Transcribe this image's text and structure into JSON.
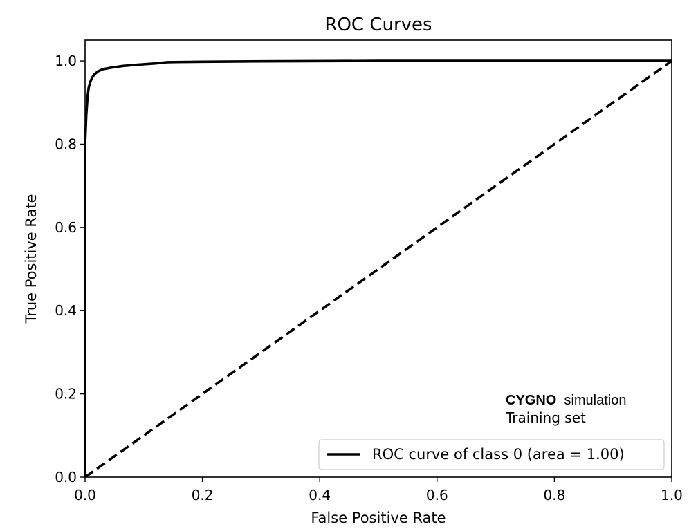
{
  "chart_data": {
    "type": "line",
    "title": "ROC Curves",
    "xlabel": "False Positive Rate",
    "ylabel": "True Positive Rate",
    "xlim": [
      0.0,
      1.0
    ],
    "ylim": [
      0.0,
      1.05
    ],
    "xticks": [
      "0.0",
      "0.2",
      "0.4",
      "0.6",
      "0.8",
      "1.0"
    ],
    "yticks": [
      "0.0",
      "0.2",
      "0.4",
      "0.6",
      "0.8",
      "1.0"
    ],
    "grid": false,
    "legend_position": "bottom-right",
    "series": [
      {
        "name": "ROC curve of class 0 (area = 1.00)",
        "style": "solid",
        "color": "#000000",
        "x": [
          0.0,
          0.0,
          0.002,
          0.004,
          0.006,
          0.009,
          0.012,
          0.016,
          0.022,
          0.03,
          0.045,
          0.065,
          0.09,
          0.12,
          0.14,
          0.2,
          0.3,
          0.5,
          0.8,
          1.0
        ],
        "y": [
          0.0,
          0.8,
          0.87,
          0.91,
          0.935,
          0.95,
          0.96,
          0.968,
          0.975,
          0.98,
          0.984,
          0.988,
          0.991,
          0.994,
          0.997,
          0.998,
          0.999,
          1.0,
          1.0,
          1.0
        ]
      },
      {
        "name": "",
        "style": "dashed",
        "color": "#000000",
        "x": [
          0.0,
          1.0
        ],
        "y": [
          0.0,
          1.0
        ]
      }
    ],
    "annotation": {
      "bold": "CYGNO",
      "rest": "simulation",
      "line2": "Training set"
    }
  }
}
